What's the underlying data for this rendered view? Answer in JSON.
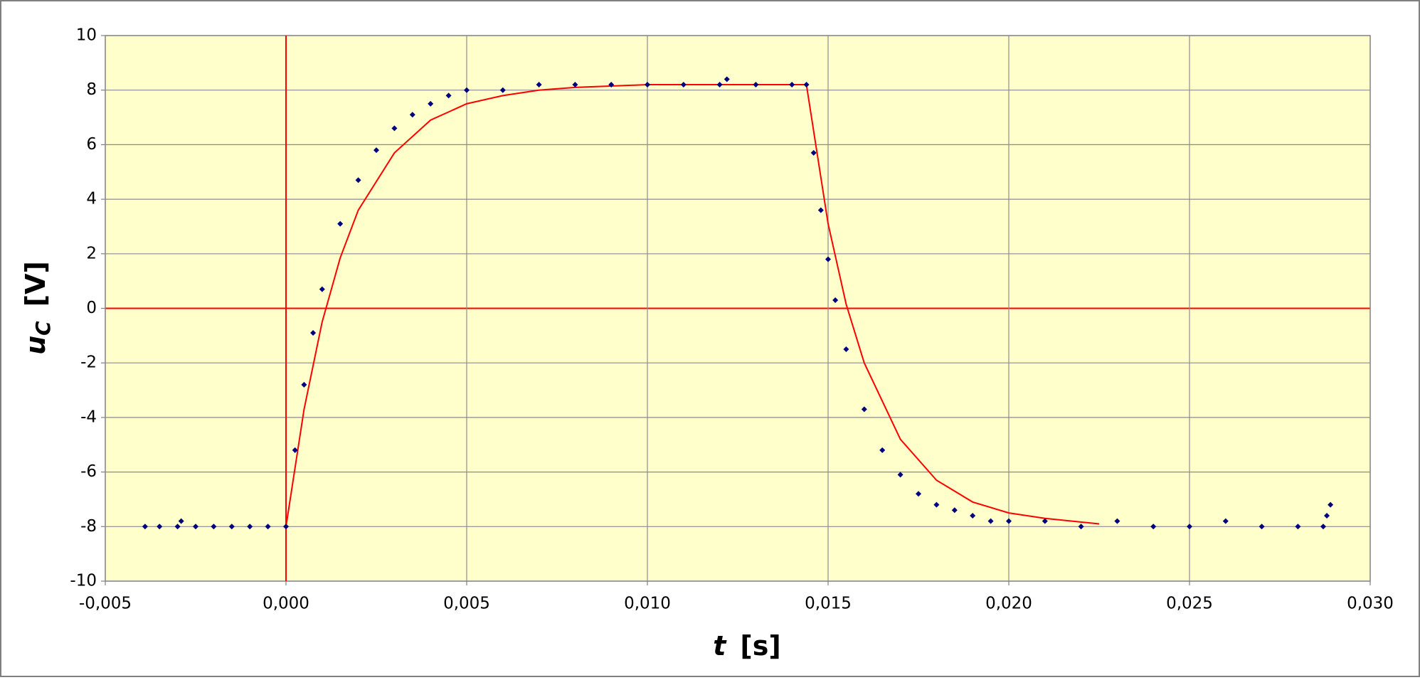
{
  "chart_data": {
    "type": "scatter",
    "x_label": {
      "main": "t",
      "unit": "[s]"
    },
    "y_label": {
      "main": "u",
      "sub": "C",
      "unit": "[V]"
    },
    "xlim": [
      -0.005,
      0.03
    ],
    "ylim": [
      -10,
      10
    ],
    "xticks": [
      {
        "value": -0.005,
        "label": "-0,005"
      },
      {
        "value": 0,
        "label": "0,000"
      },
      {
        "value": 0.005,
        "label": "0,005"
      },
      {
        "value": 0.01,
        "label": "0,010"
      },
      {
        "value": 0.015,
        "label": "0,015"
      },
      {
        "value": 0.02,
        "label": "0,020"
      },
      {
        "value": 0.025,
        "label": "0,025"
      },
      {
        "value": 0.03,
        "label": "0,030"
      }
    ],
    "yticks": [
      -10,
      -8,
      -6,
      -4,
      -2,
      0,
      2,
      4,
      6,
      8,
      10
    ],
    "grid": true,
    "zero_lines_color": "#ff0000",
    "series": [
      {
        "type": "scatter",
        "color": "#000080",
        "x": [
          -0.0039,
          -0.0035,
          -0.003,
          -0.0029,
          -0.0025,
          -0.002,
          -0.0015,
          -0.001,
          -0.0005,
          0,
          0.00025,
          0.0005,
          0.00075,
          0.001,
          0.0015,
          0.002,
          0.0025,
          0.003,
          0.0035,
          0.004,
          0.0045,
          0.005,
          0.006,
          0.007,
          0.008,
          0.009,
          0.01,
          0.011,
          0.012,
          0.0122,
          0.013,
          0.014,
          0.0144,
          0.0146,
          0.0148,
          0.015,
          0.0152,
          0.0155,
          0.016,
          0.0165,
          0.017,
          0.0175,
          0.018,
          0.0185,
          0.019,
          0.0195,
          0.02,
          0.021,
          0.022,
          0.023,
          0.024,
          0.025,
          0.026,
          0.027,
          0.028,
          0.0287,
          0.0288,
          0.0289
        ],
        "values": [
          -8,
          -8,
          -8,
          -7.8,
          -8,
          -8,
          -8,
          -8,
          -8,
          -8,
          -5.2,
          -2.8,
          -0.9,
          0.7,
          3.1,
          4.7,
          5.8,
          6.6,
          7.1,
          7.5,
          7.8,
          8.0,
          8.0,
          8.2,
          8.2,
          8.2,
          8.2,
          8.2,
          8.2,
          8.4,
          8.2,
          8.2,
          8.2,
          5.7,
          3.6,
          1.8,
          0.3,
          -1.5,
          -3.7,
          -5.2,
          -6.1,
          -6.8,
          -7.2,
          -7.4,
          -7.6,
          -7.8,
          -7.8,
          -7.8,
          -8.0,
          -7.8,
          -8.0,
          -8.0,
          -7.8,
          -8.0,
          -8.0,
          -8.0,
          -7.6,
          -7.2
        ]
      },
      {
        "type": "line",
        "color": "#ff0000",
        "x": [
          0,
          0.0005,
          0.001,
          0.0015,
          0.002,
          0.003,
          0.004,
          0.005,
          0.006,
          0.007,
          0.008,
          0.01,
          0.0144,
          0.015,
          0.0155,
          0.016,
          0.017,
          0.018,
          0.019,
          0.02,
          0.021,
          0.0225
        ],
        "values": [
          -8,
          -3.7,
          -0.5,
          1.85,
          3.6,
          5.7,
          6.9,
          7.5,
          7.8,
          8.0,
          8.1,
          8.2,
          8.2,
          3.1,
          0.15,
          -2.0,
          -4.8,
          -6.3,
          -7.1,
          -7.5,
          -7.7,
          -7.9
        ]
      }
    ]
  }
}
